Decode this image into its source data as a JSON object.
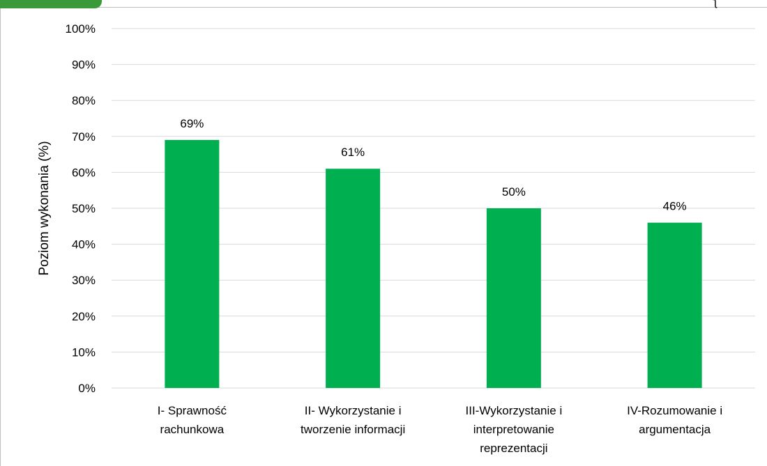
{
  "chart_data": {
    "type": "bar",
    "categories": [
      [
        "I- Sprawność",
        "rachunkowa"
      ],
      [
        "II- Wykorzystanie i",
        "tworzenie informacji"
      ],
      [
        "III-Wykorzystanie i",
        "interpretowanie",
        "reprezentacji"
      ],
      [
        "IV-Rozumowanie i",
        "argumentacja"
      ]
    ],
    "values": [
      69,
      61,
      50,
      46
    ],
    "data_labels": [
      "69%",
      "61%",
      "50%",
      "46%"
    ],
    "ylabel": "Poziom wykonania (%)",
    "ylim": [
      0,
      100
    ],
    "yticks": [
      0,
      10,
      20,
      30,
      40,
      50,
      60,
      70,
      80,
      90,
      100
    ],
    "ytick_labels": [
      "0%",
      "10%",
      "20%",
      "30%",
      "40%",
      "50%",
      "60%",
      "70%",
      "80%",
      "90%",
      "100%"
    ],
    "grid": true,
    "bar_color": "#00b050"
  },
  "colors": {
    "gridline": "#d9d9d9",
    "badge": "#3a9a3a",
    "frame": "#bfbfbf"
  },
  "corner_glyph": "ʅ"
}
